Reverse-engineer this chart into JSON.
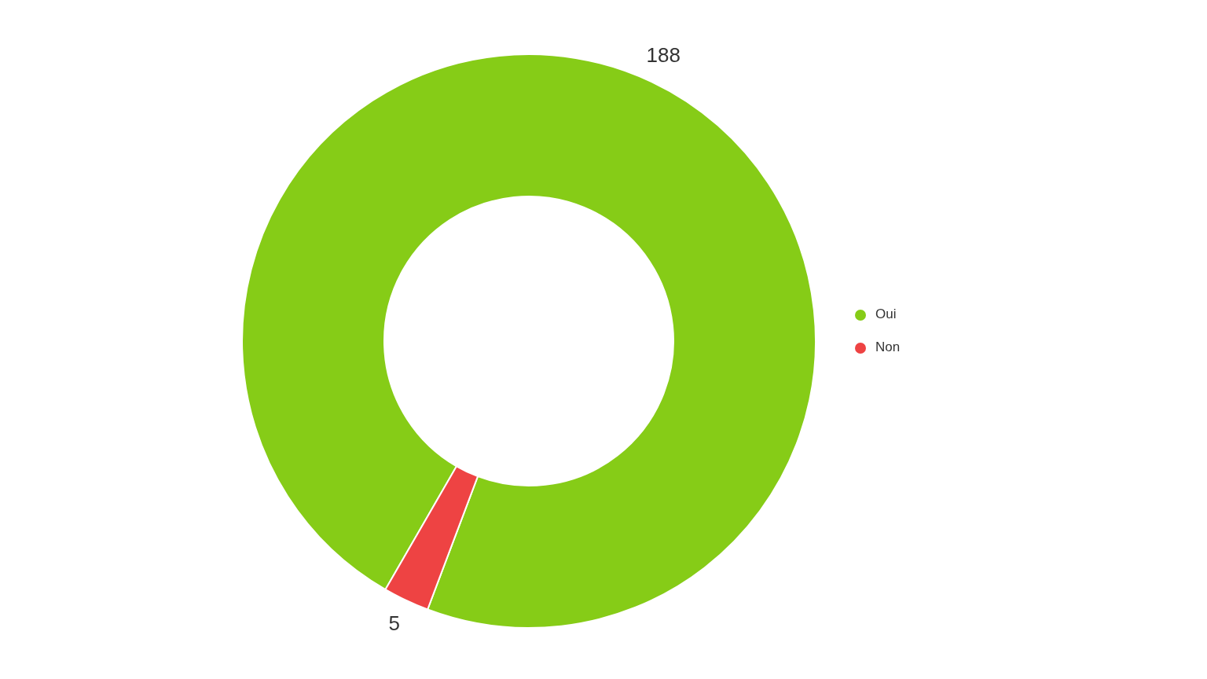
{
  "chart_data": {
    "type": "donut",
    "categories": [
      "Oui",
      "Non"
    ],
    "values": [
      188,
      5
    ],
    "colors": [
      "#86cc17",
      "#ee4343"
    ],
    "data_labels": true,
    "legend": "right"
  }
}
